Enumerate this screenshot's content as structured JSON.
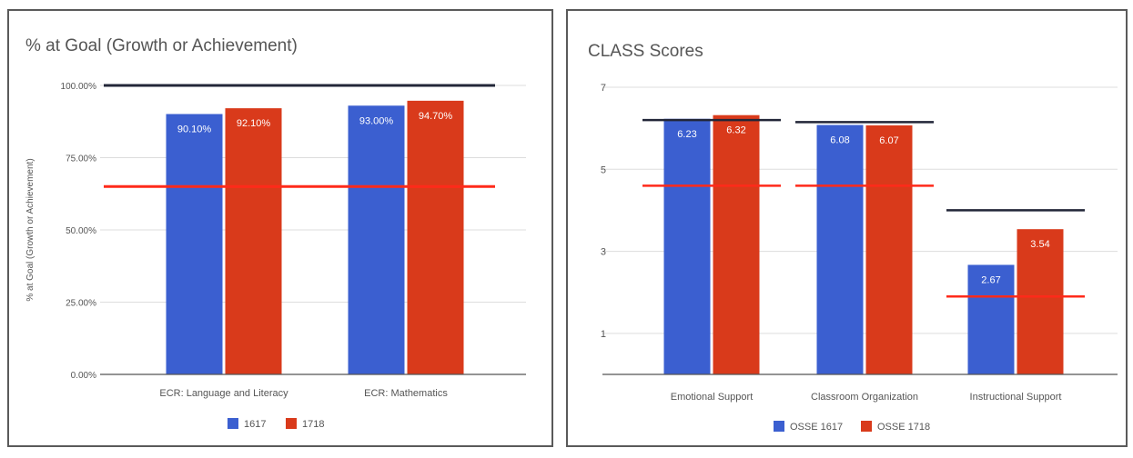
{
  "colors": {
    "series1": "#3b5fd0",
    "series2": "#d93a1b",
    "goal_line": "#222638",
    "ref_line": "#ff2a1a",
    "grid": "#dddddd",
    "axis": "#555555",
    "text": "#555555"
  },
  "chart_data": [
    {
      "type": "bar",
      "title": "% at Goal (Growth or Achievement)",
      "xlabel": "",
      "ylabel": "% at Goal (Growth or Achievement)",
      "ylim": [
        0,
        100
      ],
      "yticks": [
        0,
        25,
        50,
        75,
        100
      ],
      "ytick_labels": [
        "0.00%",
        "25.00%",
        "50.00%",
        "75.00%",
        "100.00%"
      ],
      "categories": [
        "ECR: Language and Literacy",
        "ECR: Mathematics"
      ],
      "series": [
        {
          "name": "1617",
          "values": [
            90.1,
            93.0
          ],
          "labels": [
            "90.10%",
            "93.00%"
          ]
        },
        {
          "name": "1718",
          "values": [
            92.1,
            94.7
          ],
          "labels": [
            "92.10%",
            "94.70%"
          ]
        }
      ],
      "reference_lines": [
        {
          "y": 100,
          "color": "goal_line"
        },
        {
          "y": 65,
          "color": "ref_line"
        }
      ],
      "grid": true,
      "legend": "bottom"
    },
    {
      "type": "bar",
      "title": "CLASS Scores",
      "xlabel": "",
      "ylabel": "",
      "ylim": [
        0,
        7
      ],
      "yticks": [
        1,
        3,
        5,
        7
      ],
      "ytick_labels": [
        "1",
        "3",
        "5",
        "7"
      ],
      "categories": [
        "Emotional Support",
        "Classroom Organization",
        "Instructional Support"
      ],
      "series": [
        {
          "name": "OSSE 1617",
          "values": [
            6.23,
            6.08,
            2.67
          ],
          "labels": [
            "6.23",
            "6.08",
            "2.67"
          ]
        },
        {
          "name": "OSSE 1718",
          "values": [
            6.32,
            6.07,
            3.54
          ],
          "labels": [
            "6.32",
            "6.07",
            "3.54"
          ]
        }
      ],
      "category_reference_lines": [
        {
          "category": 0,
          "black": 6.2,
          "red": 4.6
        },
        {
          "category": 1,
          "black": 6.15,
          "red": 4.6
        },
        {
          "category": 2,
          "black": 4.0,
          "red": 1.9
        }
      ],
      "grid": true,
      "legend": "bottom"
    }
  ]
}
